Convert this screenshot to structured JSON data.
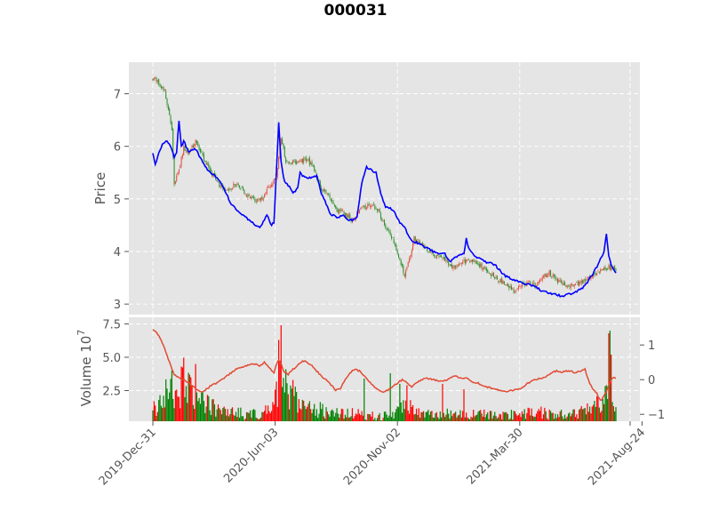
{
  "chart_data": {
    "title": "000031",
    "type": "candlestick",
    "x_tick_labels": [
      "2019-Dec-31",
      "2020-Jun-03",
      "2020-Nov-02",
      "2021-Mar-30",
      "2021-Aug-24"
    ],
    "price_panel": {
      "ylabel": "Price",
      "yticks": [
        3,
        4,
        5,
        6,
        7
      ],
      "ylim": [
        2.8,
        7.6
      ],
      "close_anchors": [
        [
          0,
          7.3
        ],
        [
          5,
          7.2
        ],
        [
          10,
          7.05
        ],
        [
          14,
          6.6
        ],
        [
          16,
          6.3
        ],
        [
          18,
          5.3
        ],
        [
          22,
          5.55
        ],
        [
          26,
          6.0
        ],
        [
          30,
          5.85
        ],
        [
          36,
          6.1
        ],
        [
          42,
          5.8
        ],
        [
          48,
          5.55
        ],
        [
          55,
          5.3
        ],
        [
          62,
          5.15
        ],
        [
          70,
          5.3
        ],
        [
          80,
          5.05
        ],
        [
          90,
          4.95
        ],
        [
          100,
          5.3
        ],
        [
          104,
          5.4
        ],
        [
          108,
          6.2
        ],
        [
          112,
          5.7
        ],
        [
          118,
          5.7
        ],
        [
          124,
          5.7
        ],
        [
          130,
          5.75
        ],
        [
          136,
          5.55
        ],
        [
          142,
          5.15
        ],
        [
          148,
          5.1
        ],
        [
          154,
          4.8
        ],
        [
          160,
          4.75
        ],
        [
          168,
          4.6
        ],
        [
          175,
          4.8
        ],
        [
          182,
          4.9
        ],
        [
          190,
          4.8
        ],
        [
          196,
          4.4
        ],
        [
          200,
          4.35
        ],
        [
          206,
          3.95
        ],
        [
          212,
          3.55
        ],
        [
          216,
          3.85
        ],
        [
          220,
          4.25
        ],
        [
          224,
          4.15
        ],
        [
          228,
          4.1
        ],
        [
          236,
          3.95
        ],
        [
          244,
          3.85
        ],
        [
          250,
          3.75
        ],
        [
          256,
          3.7
        ],
        [
          262,
          3.8
        ],
        [
          270,
          3.85
        ],
        [
          278,
          3.7
        ],
        [
          286,
          3.55
        ],
        [
          292,
          3.45
        ],
        [
          298,
          3.35
        ],
        [
          304,
          3.25
        ],
        [
          310,
          3.35
        ],
        [
          316,
          3.4
        ],
        [
          322,
          3.35
        ],
        [
          328,
          3.5
        ],
        [
          334,
          3.6
        ],
        [
          340,
          3.45
        ],
        [
          348,
          3.35
        ],
        [
          356,
          3.4
        ],
        [
          364,
          3.45
        ],
        [
          370,
          3.55
        ],
        [
          378,
          3.65
        ],
        [
          384,
          3.7
        ],
        [
          390,
          3.65
        ]
      ],
      "ma_anchors": [
        [
          0,
          5.85
        ],
        [
          2,
          5.65
        ],
        [
          4,
          5.8
        ],
        [
          8,
          6.05
        ],
        [
          12,
          6.1
        ],
        [
          16,
          5.95
        ],
        [
          18,
          5.8
        ],
        [
          20,
          5.9
        ],
        [
          22,
          6.5
        ],
        [
          24,
          6.0
        ],
        [
          26,
          6.1
        ],
        [
          30,
          5.9
        ],
        [
          36,
          5.95
        ],
        [
          42,
          5.7
        ],
        [
          48,
          5.5
        ],
        [
          54,
          5.4
        ],
        [
          60,
          5.2
        ],
        [
          66,
          4.9
        ],
        [
          72,
          4.75
        ],
        [
          78,
          4.65
        ],
        [
          84,
          4.55
        ],
        [
          90,
          4.45
        ],
        [
          96,
          4.7
        ],
        [
          100,
          4.5
        ],
        [
          102,
          4.55
        ],
        [
          104,
          5.5
        ],
        [
          106,
          6.45
        ],
        [
          108,
          5.7
        ],
        [
          110,
          5.4
        ],
        [
          112,
          5.3
        ],
        [
          116,
          5.2
        ],
        [
          118,
          5.1
        ],
        [
          122,
          5.2
        ],
        [
          124,
          5.5
        ],
        [
          128,
          5.4
        ],
        [
          134,
          5.4
        ],
        [
          138,
          5.45
        ],
        [
          142,
          5.1
        ],
        [
          146,
          4.9
        ],
        [
          150,
          4.7
        ],
        [
          156,
          4.65
        ],
        [
          160,
          4.7
        ],
        [
          164,
          4.6
        ],
        [
          168,
          4.6
        ],
        [
          172,
          4.65
        ],
        [
          176,
          5.3
        ],
        [
          180,
          5.6
        ],
        [
          184,
          5.55
        ],
        [
          188,
          5.5
        ],
        [
          192,
          5.1
        ],
        [
          196,
          4.85
        ],
        [
          202,
          4.8
        ],
        [
          208,
          4.55
        ],
        [
          212,
          4.45
        ],
        [
          218,
          4.2
        ],
        [
          224,
          4.15
        ],
        [
          232,
          4.05
        ],
        [
          240,
          3.95
        ],
        [
          246,
          3.95
        ],
        [
          250,
          3.8
        ],
        [
          256,
          3.9
        ],
        [
          262,
          3.95
        ],
        [
          264,
          4.25
        ],
        [
          266,
          4.05
        ],
        [
          272,
          3.9
        ],
        [
          280,
          3.8
        ],
        [
          288,
          3.75
        ],
        [
          296,
          3.55
        ],
        [
          304,
          3.45
        ],
        [
          312,
          3.4
        ],
        [
          320,
          3.35
        ],
        [
          328,
          3.25
        ],
        [
          336,
          3.2
        ],
        [
          344,
          3.15
        ],
        [
          352,
          3.2
        ],
        [
          358,
          3.25
        ],
        [
          364,
          3.35
        ],
        [
          370,
          3.55
        ],
        [
          376,
          3.8
        ],
        [
          380,
          4.0
        ],
        [
          382,
          4.35
        ],
        [
          384,
          3.9
        ],
        [
          386,
          3.75
        ],
        [
          388,
          3.65
        ],
        [
          390,
          3.6
        ]
      ]
    },
    "volume_panel": {
      "ylabel": "Volume  10",
      "ylabel_exponent": "7",
      "yticks": [
        "2.5",
        "5.0",
        "7.5"
      ],
      "ylim": [
        0.2,
        8.0
      ],
      "right_yticks": [
        "1",
        "0",
        "−1"
      ],
      "right_ylim": [
        -1.2,
        1.8
      ],
      "volume_anchors": [
        [
          0,
          1.0
        ],
        [
          5,
          1.4
        ],
        [
          10,
          2.2
        ],
        [
          14,
          2.6
        ],
        [
          18,
          1.5
        ],
        [
          22,
          2.4
        ],
        [
          26,
          3.2
        ],
        [
          30,
          2.6
        ],
        [
          36,
          2.0
        ],
        [
          42,
          1.6
        ],
        [
          48,
          1.3
        ],
        [
          56,
          1.1
        ],
        [
          64,
          0.9
        ],
        [
          72,
          0.8
        ],
        [
          80,
          0.7
        ],
        [
          90,
          0.8
        ],
        [
          98,
          1.0
        ],
        [
          102,
          1.8
        ],
        [
          106,
          3.2
        ],
        [
          110,
          2.6
        ],
        [
          116,
          2.0
        ],
        [
          122,
          1.8
        ],
        [
          128,
          1.5
        ],
        [
          134,
          1.3
        ],
        [
          142,
          1.0
        ],
        [
          152,
          0.8
        ],
        [
          162,
          0.7
        ],
        [
          172,
          0.8
        ],
        [
          182,
          0.6
        ],
        [
          192,
          0.6
        ],
        [
          200,
          0.6
        ],
        [
          206,
          1.0
        ],
        [
          212,
          1.4
        ],
        [
          218,
          1.2
        ],
        [
          224,
          0.9
        ],
        [
          232,
          0.7
        ],
        [
          240,
          0.6
        ],
        [
          250,
          0.8
        ],
        [
          260,
          0.7
        ],
        [
          270,
          0.7
        ],
        [
          280,
          0.7
        ],
        [
          290,
          0.6
        ],
        [
          300,
          0.7
        ],
        [
          310,
          0.7
        ],
        [
          320,
          0.9
        ],
        [
          330,
          0.8
        ],
        [
          340,
          0.7
        ],
        [
          350,
          0.7
        ],
        [
          360,
          0.9
        ],
        [
          368,
          1.0
        ],
        [
          374,
          1.3
        ],
        [
          378,
          1.6
        ],
        [
          382,
          2.5
        ],
        [
          384,
          1.8
        ],
        [
          386,
          1.2
        ],
        [
          390,
          0.9
        ]
      ],
      "volume_spikes": [
        [
          16,
          4.0
        ],
        [
          24,
          4.3
        ],
        [
          36,
          4.5
        ],
        [
          106,
          6.3
        ],
        [
          108,
          7.4
        ],
        [
          112,
          4.1
        ],
        [
          118,
          3.3
        ],
        [
          178,
          3.4
        ],
        [
          200,
          3.8
        ],
        [
          208,
          3.0
        ],
        [
          214,
          2.9
        ],
        [
          244,
          3.0
        ],
        [
          262,
          2.6
        ],
        [
          384,
          6.8
        ],
        [
          385,
          7.0
        ],
        [
          386,
          5.2
        ]
      ],
      "indicator_anchors": [
        [
          0,
          1.45
        ],
        [
          2,
          1.4
        ],
        [
          4,
          1.3
        ],
        [
          6,
          1.2
        ],
        [
          8,
          1.05
        ],
        [
          10,
          0.9
        ],
        [
          12,
          0.7
        ],
        [
          14,
          0.5
        ],
        [
          16,
          0.3
        ],
        [
          18,
          0.15
        ],
        [
          20,
          0.1
        ],
        [
          22,
          0.05
        ],
        [
          26,
          0.0
        ],
        [
          30,
          -0.1
        ],
        [
          34,
          -0.2
        ],
        [
          38,
          -0.3
        ],
        [
          42,
          -0.35
        ],
        [
          46,
          -0.25
        ],
        [
          50,
          -0.15
        ],
        [
          54,
          -0.1
        ],
        [
          58,
          0.0
        ],
        [
          62,
          0.1
        ],
        [
          66,
          0.2
        ],
        [
          70,
          0.3
        ],
        [
          74,
          0.35
        ],
        [
          78,
          0.4
        ],
        [
          82,
          0.45
        ],
        [
          86,
          0.45
        ],
        [
          90,
          0.4
        ],
        [
          94,
          0.5
        ],
        [
          98,
          0.35
        ],
        [
          102,
          0.2
        ],
        [
          104,
          0.45
        ],
        [
          106,
          0.55
        ],
        [
          108,
          0.45
        ],
        [
          110,
          0.25
        ],
        [
          114,
          0.15
        ],
        [
          118,
          0.3
        ],
        [
          122,
          0.4
        ],
        [
          126,
          0.55
        ],
        [
          130,
          0.5
        ],
        [
          134,
          0.4
        ],
        [
          138,
          0.25
        ],
        [
          142,
          0.1
        ],
        [
          146,
          0.0
        ],
        [
          150,
          -0.15
        ],
        [
          154,
          -0.3
        ],
        [
          158,
          -0.25
        ],
        [
          162,
          0.0
        ],
        [
          166,
          0.2
        ],
        [
          170,
          0.3
        ],
        [
          174,
          0.25
        ],
        [
          178,
          0.1
        ],
        [
          182,
          -0.05
        ],
        [
          186,
          -0.2
        ],
        [
          190,
          -0.3
        ],
        [
          194,
          -0.35
        ],
        [
          198,
          -0.3
        ],
        [
          202,
          -0.2
        ],
        [
          206,
          -0.1
        ],
        [
          210,
          0.0
        ],
        [
          214,
          -0.1
        ],
        [
          218,
          -0.2
        ],
        [
          222,
          -0.1
        ],
        [
          226,
          0.0
        ],
        [
          230,
          0.05
        ],
        [
          236,
          0.0
        ],
        [
          242,
          -0.05
        ],
        [
          248,
          0.0
        ],
        [
          254,
          0.1
        ],
        [
          260,
          0.05
        ],
        [
          264,
          0.05
        ],
        [
          268,
          -0.05
        ],
        [
          274,
          -0.1
        ],
        [
          280,
          -0.2
        ],
        [
          286,
          -0.25
        ],
        [
          292,
          -0.3
        ],
        [
          298,
          -0.35
        ],
        [
          304,
          -0.3
        ],
        [
          310,
          -0.25
        ],
        [
          316,
          -0.1
        ],
        [
          322,
          0.0
        ],
        [
          328,
          0.05
        ],
        [
          332,
          0.1
        ],
        [
          336,
          0.2
        ],
        [
          340,
          0.25
        ],
        [
          344,
          0.2
        ],
        [
          348,
          0.25
        ],
        [
          352,
          0.25
        ],
        [
          356,
          0.2
        ],
        [
          360,
          0.25
        ],
        [
          364,
          0.3
        ],
        [
          366,
          0.05
        ],
        [
          370,
          -0.25
        ],
        [
          374,
          -0.4
        ],
        [
          376,
          -0.55
        ],
        [
          378,
          -0.6
        ],
        [
          380,
          -0.45
        ],
        [
          382,
          -0.35
        ],
        [
          384,
          -0.15
        ],
        [
          386,
          0.0
        ],
        [
          388,
          0.05
        ],
        [
          390,
          0.05
        ]
      ]
    },
    "n_bars": 391,
    "colors": {
      "panel_background": "#e5e5e5",
      "grid": "#ffffff",
      "up": "#ff0000",
      "down": "#008000",
      "candle_up": "#e05040",
      "candle_down": "#2f8f2f",
      "moving_average": "#0000ff",
      "indicator": "#e24a33"
    }
  }
}
